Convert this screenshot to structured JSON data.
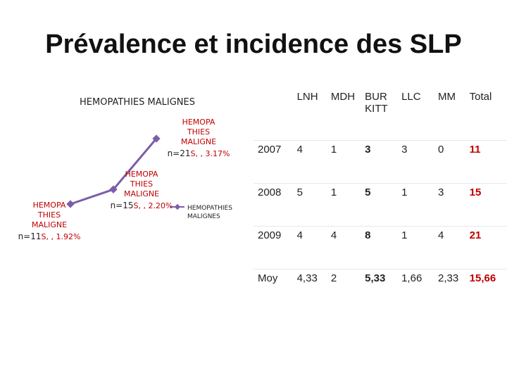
{
  "title": "Prévalence et incidence des SLP",
  "chart_data": {
    "type": "line",
    "title": "HEMOPATHIES MALIGNES",
    "categories": [
      "n=11",
      "n=15",
      "n=21"
    ],
    "data_label_series": "HEMOPA THIES MALIGNE",
    "series": [
      {
        "name": "HEMOPATHIES MALIGNES",
        "color": "#7b5ea7",
        "values": [
          1.92,
          2.2,
          3.17
        ],
        "value_labels": [
          "S, , 1.92%",
          "S, , 2.20%",
          "S, , 3.17%"
        ]
      }
    ],
    "legend": "right"
  },
  "table": {
    "header": [
      "",
      "LNH",
      "MDH",
      "BURKITT",
      "LLC",
      "MM",
      "Total"
    ],
    "rows": [
      [
        "2007",
        "4",
        "1",
        "3",
        "3",
        "0",
        "11"
      ],
      [
        "2008",
        "5",
        "1",
        "5",
        "1",
        "3",
        "15"
      ],
      [
        "2009",
        "4",
        "4",
        "8",
        "1",
        "4",
        "21"
      ],
      [
        "Moy",
        "4,33",
        "2",
        "5,33",
        "1,66",
        "2,33",
        "15,66"
      ]
    ]
  }
}
